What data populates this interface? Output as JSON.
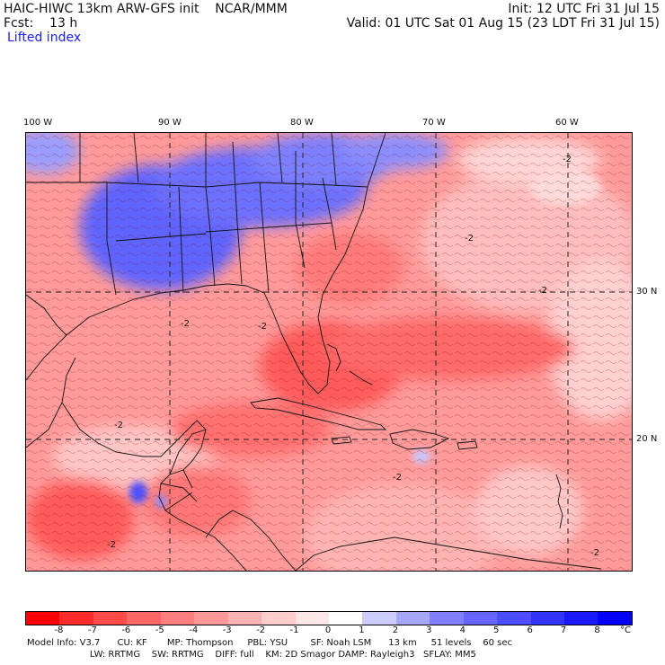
{
  "header": {
    "title": "HAIC-HIWC 13km ARW-GFS init    NCAR/MMM",
    "forecast": "Fcst:    13 h",
    "field": "Lifted index",
    "init": "Init: 12 UTC Fri 31 Jul 15",
    "valid": "Valid: 01 UTC Sat 01 Aug 15 (23 LDT Fri 31 Jul 15)"
  },
  "map": {
    "lon_labels": [
      "100 W",
      "90 W",
      "80 W",
      "70 W",
      "60 W"
    ],
    "lat_labels": [
      "30 N",
      "20 N"
    ],
    "contour_labels": [
      "-2",
      "-2",
      "-2",
      "-2",
      "-2",
      "-2",
      "-2",
      "-2",
      "-2"
    ]
  },
  "legend": {
    "values": [
      "-8",
      "-7",
      "-6",
      "-5",
      "-4",
      "-3",
      "-2",
      "-1",
      "0",
      "1",
      "2",
      "3",
      "4",
      "5",
      "6",
      "7",
      "8"
    ],
    "unit": "°C",
    "colors": [
      "#ff0000",
      "#ff2a2a",
      "#ff4a4a",
      "#ff6666",
      "#ff7f7f",
      "#ff9999",
      "#ffb2b2",
      "#ffcccc",
      "#ffe6e6",
      "#ffffff",
      "#ccccff",
      "#a6a6ff",
      "#8080ff",
      "#6666ff",
      "#4d4dff",
      "#3333ff",
      "#1a1aff",
      "#0000ff"
    ]
  },
  "model_info": {
    "line1": "Model Info: V3.7      CU: KF       MP: Thompson     PBL: YSU        SF: Noah LSM      13 km     51 levels    60 sec",
    "line2": "                      LW: RRTMG    SW: RRTMG    DIFF: full    KM: 2D Smagor DAMP: Rayleigh3   SFLAY: MM5"
  }
}
